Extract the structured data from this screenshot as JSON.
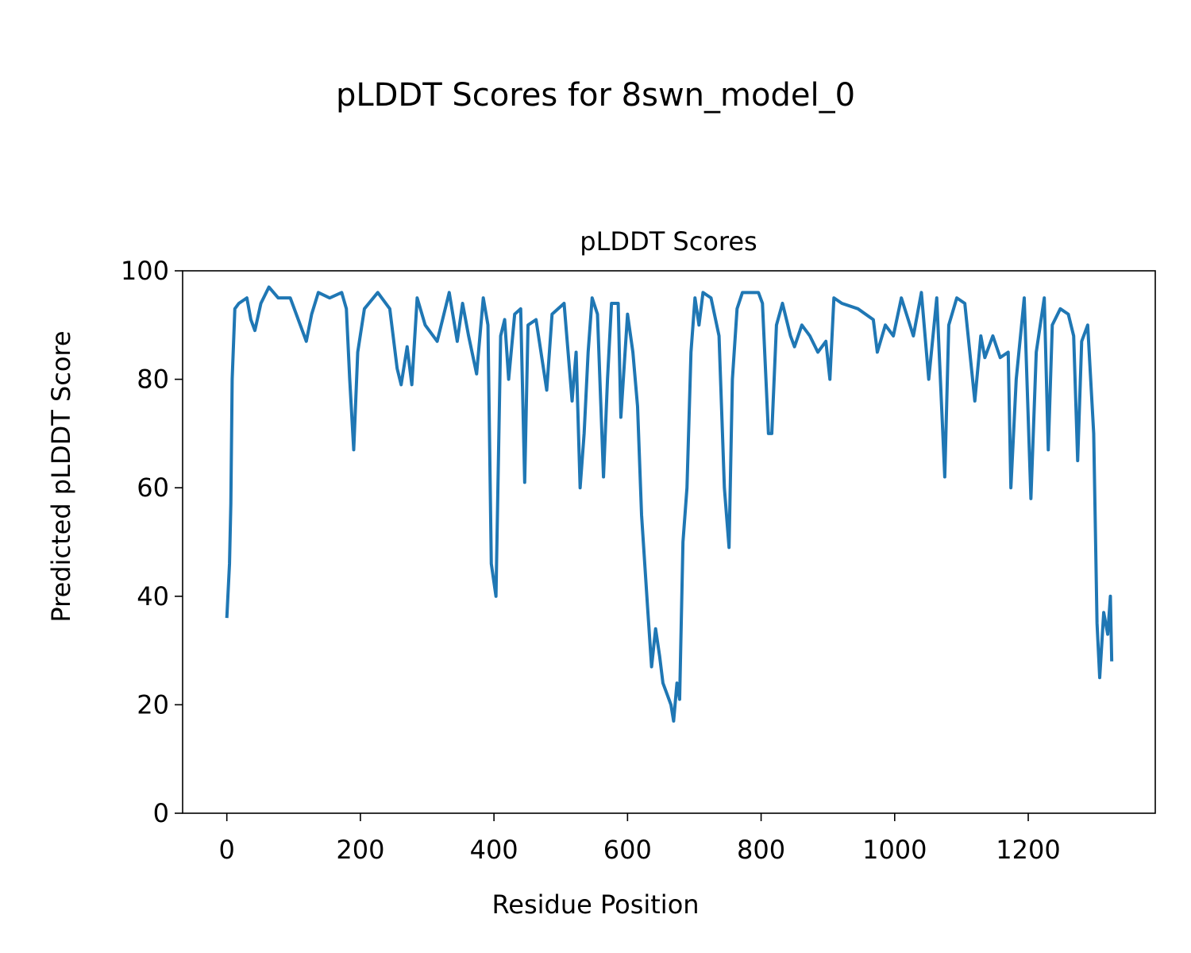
{
  "chart_data": {
    "type": "line",
    "title": "pLDDT Scores for 8swn_model_0",
    "subtitle": "pLDDT Scores",
    "xlabel": "Residue Position",
    "ylabel": "Predicted pLDDT Score",
    "color": "#1f77b4",
    "x": [
      0,
      4,
      6,
      8,
      12,
      18,
      30,
      36,
      42,
      51,
      63,
      77,
      95,
      119,
      127,
      137,
      154,
      172,
      179,
      184,
      190,
      196,
      206,
      226,
      244,
      255,
      261,
      270,
      277,
      285,
      297,
      315,
      333,
      345,
      353,
      362,
      374,
      384,
      391,
      396,
      403,
      410,
      416,
      422,
      431,
      440,
      446,
      451,
      463,
      479,
      487,
      505,
      517,
      523,
      529,
      535,
      541,
      547,
      555,
      564,
      570,
      576,
      586,
      590,
      600,
      608,
      615,
      621,
      630,
      636,
      642,
      648,
      653,
      659,
      665,
      669,
      674,
      678,
      683,
      689,
      695,
      701,
      707,
      713,
      725,
      737,
      745,
      752,
      757,
      764,
      772,
      796,
      802,
      811,
      816,
      823,
      832,
      844,
      850,
      861,
      873,
      885,
      897,
      903,
      909,
      921,
      945,
      968,
      974,
      986,
      998,
      1010,
      1028,
      1040,
      1051,
      1063,
      1075,
      1081,
      1093,
      1105,
      1120,
      1129,
      1135,
      1147,
      1158,
      1170,
      1174,
      1182,
      1194,
      1204,
      1212,
      1224,
      1230,
      1236,
      1248,
      1260,
      1268,
      1274,
      1280,
      1289,
      1298,
      1303,
      1307,
      1313,
      1319,
      1323,
      1325
    ],
    "values": [
      36,
      46,
      57,
      80,
      93,
      94,
      95,
      91,
      89,
      94,
      97,
      95,
      95,
      87,
      92,
      96,
      95,
      96,
      93,
      80,
      67,
      85,
      93,
      96,
      93,
      82,
      79,
      86,
      79,
      95,
      90,
      87,
      96,
      87,
      94,
      88,
      81,
      95,
      90,
      46,
      40,
      88,
      91,
      80,
      92,
      93,
      61,
      90,
      91,
      78,
      92,
      94,
      76,
      85,
      60,
      70,
      85,
      95,
      92,
      62,
      80,
      94,
      94,
      73,
      92,
      85,
      75,
      55,
      38,
      27,
      34,
      29,
      24,
      22,
      20,
      17,
      24,
      21,
      50,
      60,
      85,
      95,
      90,
      96,
      95,
      88,
      60,
      49,
      80,
      93,
      96,
      96,
      94,
      70,
      70,
      90,
      94,
      88,
      86,
      90,
      88,
      85,
      87,
      80,
      95,
      94,
      93,
      91,
      85,
      90,
      88,
      95,
      88,
      96,
      80,
      95,
      62,
      90,
      95,
      94,
      76,
      88,
      84,
      88,
      84,
      85,
      60,
      80,
      95,
      58,
      85,
      95,
      67,
      90,
      93,
      92,
      88,
      65,
      87,
      90,
      70,
      35,
      25,
      37,
      33,
      40,
      28
    ],
    "xlim": [
      -66.2,
      1390.2
    ],
    "ylim": [
      0,
      100
    ],
    "xticks": [
      0,
      200,
      400,
      600,
      800,
      1000,
      1200
    ],
    "yticks": [
      0,
      20,
      40,
      60,
      80,
      100
    ]
  }
}
